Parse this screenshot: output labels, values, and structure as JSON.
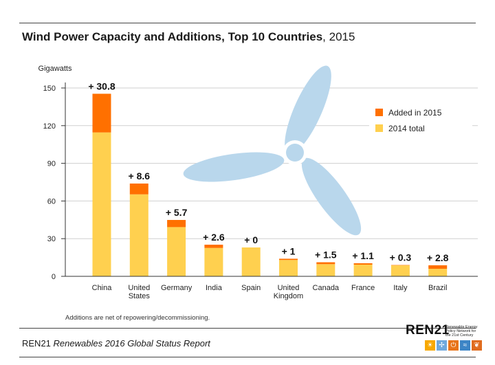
{
  "title": {
    "bold": "Wind Power Capacity and Additions, Top 10 Countries",
    "rest": ", 2015"
  },
  "footnote": "Additions are net of repowering/decommissioning.",
  "footer": {
    "org": "REN21",
    "publication": "Renewables 2016 Global Status Report"
  },
  "logo": {
    "word": "REN21",
    "tagline": "Renewable Energy Policy Network for the 21st Century",
    "icons": [
      "sun-icon",
      "wind-turbine-icon",
      "power-icon",
      "water-icon",
      "biomass-icon"
    ],
    "tile_colors": [
      "#f7a800",
      "#6fa8dc",
      "#e8741a",
      "#3d85c6",
      "#e06c1f"
    ]
  },
  "chart_data": {
    "type": "bar",
    "stacked": true,
    "ylabel": "Gigawatts",
    "ylim": [
      0,
      150
    ],
    "yticks": [
      0,
      30,
      60,
      90,
      120,
      150
    ],
    "grid": true,
    "legend_position": "top-right",
    "categories": [
      "China",
      "United States",
      "Germany",
      "India",
      "Spain",
      "United Kingdom",
      "Canada",
      "France",
      "Italy",
      "Brazil"
    ],
    "series": [
      {
        "name": "2014 total",
        "color": "#ffd04f",
        "values": [
          114.6,
          65.3,
          39.2,
          22.6,
          23.0,
          13.0,
          9.7,
          9.3,
          8.7,
          6.0
        ]
      },
      {
        "name": "Added in 2015",
        "color": "#ff7000",
        "values": [
          30.8,
          8.6,
          5.7,
          2.6,
          0,
          1.0,
          1.5,
          1.1,
          0.3,
          2.8
        ]
      }
    ],
    "bar_labels": [
      "+ 30.8",
      "+ 8.6",
      "+ 5.7",
      "+ 2.6",
      "+ 0",
      "+ 1",
      "+ 1.5",
      "+ 1.1",
      "+ 0.3",
      "+ 2.8"
    ],
    "background_graphic": "wind-turbine",
    "background_color": "#b9d7ec"
  }
}
